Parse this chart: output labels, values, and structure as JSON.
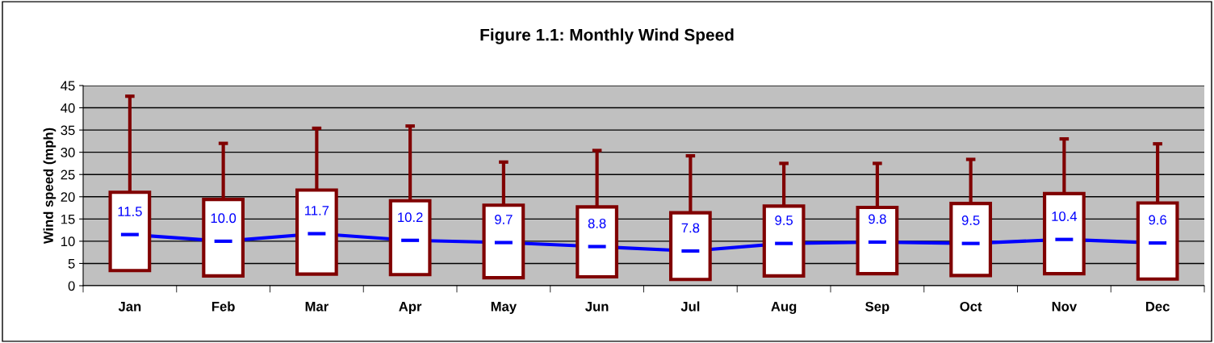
{
  "chart_data": {
    "type": "box",
    "title": "Figure 1.1: Monthly Wind Speed",
    "ylabel": "Wind speed (mph)",
    "categories": [
      "Jan",
      "Feb",
      "Mar",
      "Apr",
      "May",
      "Jun",
      "Jul",
      "Aug",
      "Sep",
      "Oct",
      "Nov",
      "Dec"
    ],
    "ylim": [
      0,
      45
    ],
    "yticks": [
      0,
      5,
      10,
      15,
      20,
      25,
      30,
      35,
      40,
      45
    ],
    "grid": "y",
    "legend": false,
    "series": [
      {
        "color": "#800000",
        "boxes": [
          {
            "low": 3.4,
            "q1": 3.4,
            "q3": 21.0,
            "high": 42.6,
            "mean": 11.5
          },
          {
            "low": 2.2,
            "q1": 2.2,
            "q3": 19.4,
            "high": 32.0,
            "mean": 10.0
          },
          {
            "low": 2.6,
            "q1": 2.6,
            "q3": 21.5,
            "high": 35.4,
            "mean": 11.7
          },
          {
            "low": 2.5,
            "q1": 2.5,
            "q3": 19.1,
            "high": 35.9,
            "mean": 10.2
          },
          {
            "low": 1.8,
            "q1": 1.8,
            "q3": 18.1,
            "high": 27.8,
            "mean": 9.7
          },
          {
            "low": 2.0,
            "q1": 2.0,
            "q3": 17.7,
            "high": 30.4,
            "mean": 8.8
          },
          {
            "low": 1.4,
            "q1": 1.4,
            "q3": 16.4,
            "high": 29.2,
            "mean": 7.8
          },
          {
            "low": 2.2,
            "q1": 2.2,
            "q3": 17.9,
            "high": 27.5,
            "mean": 9.5
          },
          {
            "low": 2.7,
            "q1": 2.7,
            "q3": 17.6,
            "high": 27.5,
            "mean": 9.8
          },
          {
            "low": 2.3,
            "q1": 2.3,
            "q3": 18.5,
            "high": 28.4,
            "mean": 9.5
          },
          {
            "low": 2.7,
            "q1": 2.7,
            "q3": 20.7,
            "high": 33.0,
            "mean": 10.4
          },
          {
            "low": 1.5,
            "q1": 1.5,
            "q3": 18.6,
            "high": 31.9,
            "mean": 9.6
          }
        ]
      },
      {
        "type": "line",
        "color": "#0000ff",
        "values": [
          11.5,
          10.0,
          11.7,
          10.2,
          9.7,
          8.8,
          7.8,
          9.5,
          9.8,
          9.5,
          10.4,
          9.6
        ],
        "value_labels": [
          "11.5",
          "10.0",
          "11.7",
          "10.2",
          "9.7",
          "8.8",
          "7.8",
          "9.5",
          "9.8",
          "9.5",
          "10.4",
          "9.6"
        ]
      }
    ]
  }
}
